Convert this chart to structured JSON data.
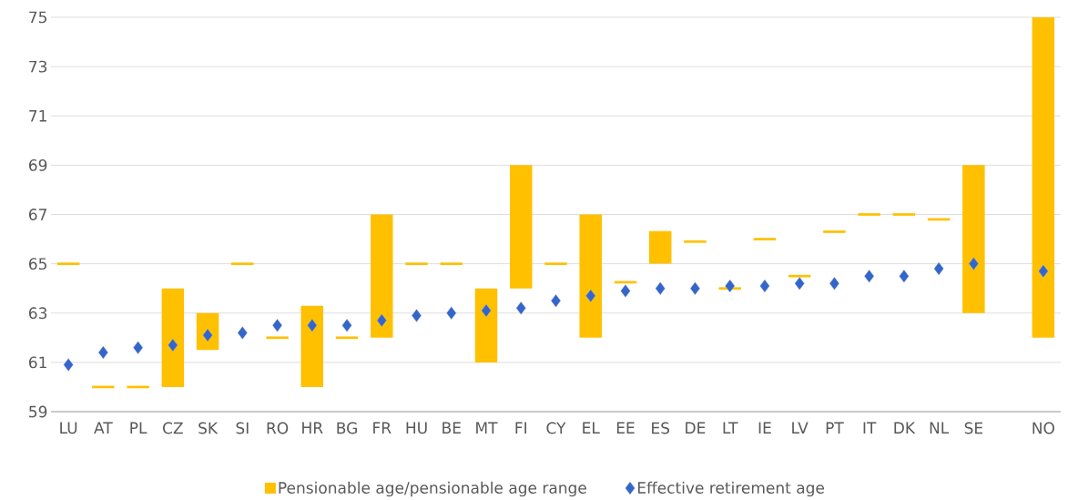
{
  "chart_data": {
    "type": "bar",
    "categories": [
      "LU",
      "AT",
      "PL",
      "CZ",
      "SK",
      "SI",
      "RO",
      "HR",
      "BG",
      "FR",
      "HU",
      "BE",
      "MT",
      "FI",
      "CY",
      "EL",
      "EE",
      "ES",
      "DE",
      "LT",
      "IE",
      "LV",
      "PT",
      "IT",
      "DK",
      "NL",
      "SE",
      null,
      "NO"
    ],
    "series": [
      {
        "name": "Pensionable age/pensionable age range",
        "color": "#ffc000",
        "base": [
          64.95,
          59.95,
          59.95,
          60,
          61.5,
          64.95,
          61.95,
          60,
          61.95,
          62,
          64.95,
          64.95,
          61,
          64,
          64.95,
          62,
          64.2,
          65,
          65.85,
          63.95,
          65.95,
          64.45,
          66.25,
          66.95,
          66.95,
          66.75,
          63,
          null,
          62
        ],
        "values": [
          0.1,
          0.1,
          0.1,
          4,
          1.5,
          0.1,
          0.1,
          3.3,
          0.1,
          5,
          0.1,
          0.1,
          3,
          5,
          0.1,
          5,
          0.1,
          1.33,
          0.1,
          0.1,
          0.1,
          0.1,
          0.1,
          0.1,
          0.1,
          0.1,
          6,
          null,
          13
        ]
      },
      {
        "name": "Effective retirement age",
        "type": "scatter",
        "color": "#3366cc",
        "marker": "diamond",
        "values": [
          60.9,
          61.4,
          61.6,
          61.7,
          62.1,
          62.2,
          62.5,
          62.5,
          62.5,
          62.7,
          62.9,
          63.0,
          63.1,
          63.2,
          63.5,
          63.7,
          63.9,
          64.0,
          64.0,
          64.1,
          64.1,
          64.2,
          64.2,
          64.5,
          64.5,
          64.8,
          65.0,
          null,
          64.7
        ]
      }
    ],
    "ylim": [
      59,
      75
    ],
    "yticks": [
      59,
      61,
      63,
      65,
      67,
      69,
      71,
      73,
      75
    ],
    "grid": "y",
    "legend": "bottom"
  }
}
